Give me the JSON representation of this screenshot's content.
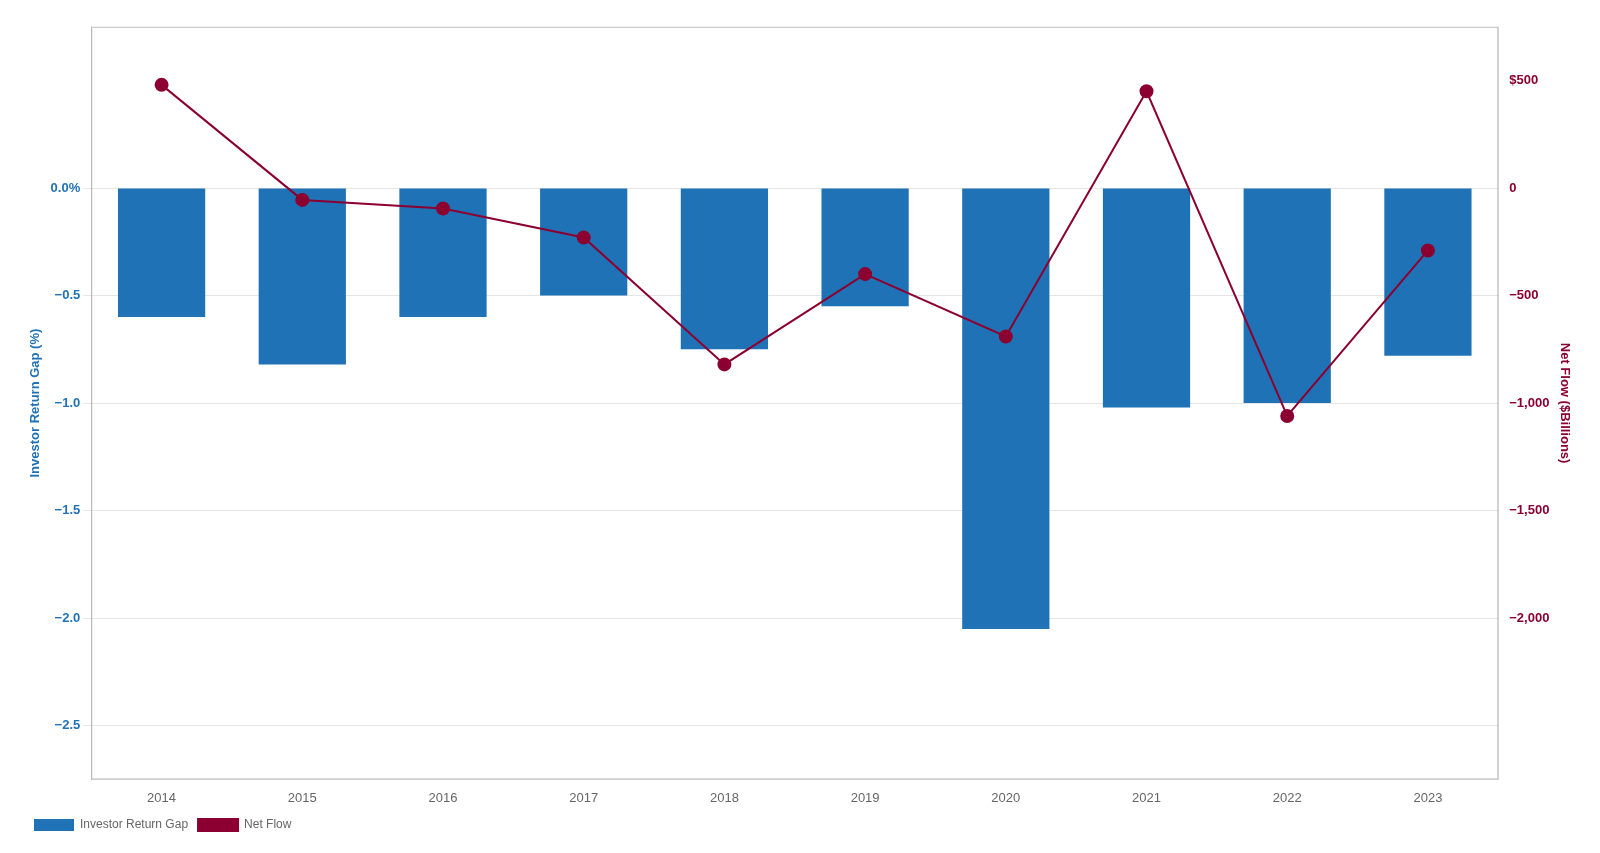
{
  "chart_data": {
    "type": "bar",
    "categories": [
      "2014",
      "2015",
      "2016",
      "2017",
      "2018",
      "2019",
      "2020",
      "2021",
      "2022",
      "2023"
    ],
    "series": [
      {
        "name": "Investor Return Gap",
        "type": "bar",
        "color": "#1F72B5",
        "axis": "y",
        "values": [
          -0.6,
          -0.82,
          -0.6,
          -0.5,
          -0.75,
          -0.55,
          -2.05,
          -1.02,
          -1.0,
          -0.78
        ]
      },
      {
        "name": "Net Flow",
        "type": "line",
        "color": "#8B0030",
        "marker": "circle",
        "axis": "y2",
        "values": [
          480,
          -55,
          -95,
          -230,
          -820,
          -400,
          -690,
          450,
          -1060,
          -290
        ]
      }
    ],
    "ylabel": "Investor Return Gap (%)",
    "y2label": "Net Flow ($Billions)",
    "ylim": [
      -2.75,
      0.75
    ],
    "yticks": [
      {
        "value": 0.0,
        "label": "0.0%"
      },
      {
        "value": -0.5,
        "label": "−0.5"
      },
      {
        "value": -1.0,
        "label": "−1.0"
      },
      {
        "value": -1.5,
        "label": "−1.5"
      },
      {
        "value": -2.0,
        "label": "−2.0"
      },
      {
        "value": -2.5,
        "label": "−2.5"
      }
    ],
    "y2lim": [
      -2750,
      750
    ],
    "y2ticks": [
      {
        "value": 500,
        "label": "$500"
      },
      0,
      {
        "value": -500,
        "label": "−500"
      },
      {
        "value": -1000,
        "label": "−1,000"
      },
      {
        "value": -1500,
        "label": "−1,500"
      },
      {
        "value": -2000,
        "label": "−2,000"
      }
    ],
    "grid": true,
    "legend": "lower left"
  }
}
